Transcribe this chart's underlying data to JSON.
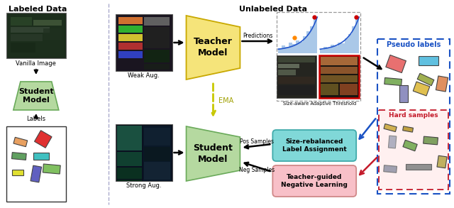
{
  "title_labeled": "Labeled Data",
  "title_unlabeled": "Unlabeled Data",
  "text_vanilla": "Vanilla Image",
  "text_student_model": "Student\nModel",
  "text_labels": "Labels",
  "text_weak_aug": "Weak Aug.",
  "text_strong_aug": "Strong Aug.",
  "text_teacher_model": "Teacher\nModel",
  "text_student_model2": "Student\nModel",
  "text_predictions": "Predictions",
  "text_ema": "EMA",
  "text_size_aware": "Size-aware Adaptive Threshold",
  "text_pseudo_labels": "Pseudo labels",
  "text_hard_samples": "Hard samples",
  "text_size_rebalanced": "Size-rebalanced\nLabel Assignment",
  "text_teacher_guided": "Teacher-guided\nNegative Learning",
  "text_pos_samples": "Pos Samples",
  "text_neg_samples": "Neg Samples",
  "green_fill": "#b5d9a0",
  "green_edge": "#6aaa5a",
  "yellow_fill": "#f5e47a",
  "yellow_edge": "#c8a800",
  "cyan_fill": "#80d8d8",
  "cyan_edge": "#40aaaa",
  "pink_fill": "#f8c0c8",
  "pink_edge": "#d08888",
  "blue_outline": "#1a52c4",
  "red_outline": "#c41a2a",
  "divider_color": "#aaaacc"
}
